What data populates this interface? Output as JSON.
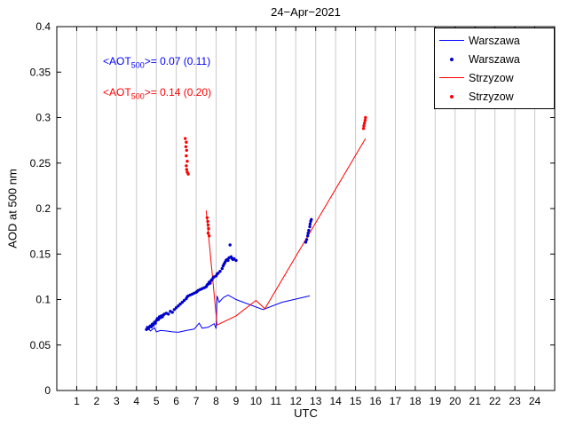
{
  "chart_data": {
    "type": "line",
    "title": "24−Apr−2021",
    "xlabel": "UTC",
    "ylabel": "AOD at 500 nm",
    "xlim": [
      0,
      25
    ],
    "ylim": [
      0,
      0.4
    ],
    "xticks": [
      1,
      2,
      3,
      4,
      5,
      6,
      7,
      8,
      9,
      10,
      11,
      12,
      13,
      14,
      15,
      16,
      17,
      18,
      19,
      20,
      21,
      22,
      23,
      24
    ],
    "xtick_labels": [
      "1",
      "2",
      "3",
      "4",
      "5",
      "6",
      "7",
      "8",
      "9",
      "10",
      "11",
      "12",
      "13",
      "14",
      "15",
      "16",
      "17",
      "18",
      "19",
      "20",
      "21",
      "22",
      "23",
      "24"
    ],
    "yticks": [
      0,
      0.05,
      0.1,
      0.15,
      0.2,
      0.25,
      0.3,
      0.35,
      0.4
    ],
    "ytick_labels": [
      "0",
      "0.05",
      "0.1",
      "0.15",
      "0.2",
      "0.25",
      "0.3",
      "0.35",
      "0.4"
    ],
    "grid": "vertical-only",
    "grid_color": "#c9c9c9",
    "legend": {
      "position": "top-right",
      "entries": [
        {
          "label": "Warszawa",
          "type": "line",
          "color": "#0000ff"
        },
        {
          "label": "Warszawa",
          "type": "scatter",
          "color": "#0000cc"
        },
        {
          "label": "Strzyzow",
          "type": "line",
          "color": "#ff0000"
        },
        {
          "label": "Strzyzow",
          "type": "scatter",
          "color": "#ff0000"
        }
      ]
    },
    "annotations": [
      {
        "pre": "<AOT",
        "sub": "500",
        "post": ">= 0.07 (0.11)",
        "color": "#0000ff"
      },
      {
        "pre": "<AOT",
        "sub": "500",
        "post": ">= 0.14 (0.20)",
        "color": "#ff0000"
      }
    ],
    "series": [
      {
        "name": "warszawa-line",
        "type": "line",
        "color": "#0000ff",
        "points": [
          [
            4.5,
            0.071
          ],
          [
            4.7,
            0.0655
          ],
          [
            4.9,
            0.069
          ],
          [
            5.0,
            0.0645
          ],
          [
            5.2,
            0.066
          ],
          [
            5.5,
            0.0655
          ],
          [
            5.8,
            0.0645
          ],
          [
            6.1,
            0.064
          ],
          [
            6.5,
            0.066
          ],
          [
            6.9,
            0.0675
          ],
          [
            7.15,
            0.074
          ],
          [
            7.3,
            0.0685
          ],
          [
            7.6,
            0.0695
          ],
          [
            7.9,
            0.0735
          ],
          [
            8.0,
            0.068
          ],
          [
            8.05,
            0.104
          ],
          [
            8.15,
            0.097
          ],
          [
            8.35,
            0.102
          ],
          [
            8.6,
            0.105
          ],
          [
            9.0,
            0.1
          ],
          [
            10.35,
            0.089
          ],
          [
            11.3,
            0.097
          ],
          [
            12.7,
            0.104
          ]
        ]
      },
      {
        "name": "warszawa-scatter",
        "type": "scatter",
        "color": "#0000cc",
        "points": [
          [
            4.5,
            0.067
          ],
          [
            4.55,
            0.069
          ],
          [
            4.6,
            0.068
          ],
          [
            4.65,
            0.07
          ],
          [
            4.7,
            0.071
          ],
          [
            4.75,
            0.07
          ],
          [
            4.8,
            0.073
          ],
          [
            4.85,
            0.072
          ],
          [
            4.9,
            0.075
          ],
          [
            4.95,
            0.074
          ],
          [
            5.0,
            0.077
          ],
          [
            5.05,
            0.079
          ],
          [
            5.1,
            0.078
          ],
          [
            5.15,
            0.081
          ],
          [
            5.2,
            0.08
          ],
          [
            5.25,
            0.082
          ],
          [
            5.3,
            0.081
          ],
          [
            5.35,
            0.083
          ],
          [
            5.4,
            0.084
          ],
          [
            5.5,
            0.085
          ],
          [
            5.6,
            0.084
          ],
          [
            5.7,
            0.087
          ],
          [
            5.8,
            0.086
          ],
          [
            5.9,
            0.089
          ],
          [
            6.0,
            0.091
          ],
          [
            6.1,
            0.093
          ],
          [
            6.2,
            0.095
          ],
          [
            6.3,
            0.097
          ],
          [
            6.4,
            0.099
          ],
          [
            6.5,
            0.101
          ],
          [
            6.55,
            0.103
          ],
          [
            6.6,
            0.104
          ],
          [
            6.7,
            0.105
          ],
          [
            6.8,
            0.106
          ],
          [
            6.9,
            0.107
          ],
          [
            7.0,
            0.108
          ],
          [
            7.05,
            0.109
          ],
          [
            7.1,
            0.11
          ],
          [
            7.2,
            0.111
          ],
          [
            7.3,
            0.112
          ],
          [
            7.4,
            0.113
          ],
          [
            7.5,
            0.114
          ],
          [
            7.55,
            0.116
          ],
          [
            7.6,
            0.117
          ],
          [
            7.65,
            0.119
          ],
          [
            7.7,
            0.118
          ],
          [
            7.75,
            0.121
          ],
          [
            7.8,
            0.122
          ],
          [
            7.85,
            0.124
          ],
          [
            7.9,
            0.125
          ],
          [
            8.0,
            0.126
          ],
          [
            8.05,
            0.128
          ],
          [
            8.1,
            0.129
          ],
          [
            8.2,
            0.131
          ],
          [
            8.3,
            0.134
          ],
          [
            8.35,
            0.137
          ],
          [
            8.4,
            0.139
          ],
          [
            8.45,
            0.141
          ],
          [
            8.5,
            0.143
          ],
          [
            8.55,
            0.144
          ],
          [
            8.6,
            0.143
          ],
          [
            8.65,
            0.146
          ],
          [
            8.7,
            0.16
          ],
          [
            8.75,
            0.147
          ],
          [
            8.8,
            0.145
          ],
          [
            8.85,
            0.144
          ],
          [
            8.9,
            0.145
          ],
          [
            9.0,
            0.143
          ],
          [
            12.5,
            0.163
          ],
          [
            12.55,
            0.166
          ],
          [
            12.6,
            0.17
          ],
          [
            12.62,
            0.173
          ],
          [
            12.65,
            0.176
          ],
          [
            12.7,
            0.18
          ],
          [
            12.72,
            0.183
          ],
          [
            12.75,
            0.186
          ],
          [
            12.78,
            0.188
          ]
        ]
      },
      {
        "name": "strzyzow-line",
        "type": "line",
        "color": "#ff0000",
        "points": [
          [
            7.5,
            0.198
          ],
          [
            8.05,
            0.072
          ],
          [
            9.0,
            0.082
          ],
          [
            10.0,
            0.099
          ],
          [
            10.45,
            0.09
          ],
          [
            15.5,
            0.277
          ]
        ]
      },
      {
        "name": "strzyzow-scatter",
        "type": "scatter",
        "color": "#ff0000",
        "points": [
          [
            6.45,
            0.277
          ],
          [
            6.5,
            0.273
          ],
          [
            6.48,
            0.268
          ],
          [
            6.52,
            0.264
          ],
          [
            6.5,
            0.258
          ],
          [
            6.55,
            0.252
          ],
          [
            6.5,
            0.247
          ],
          [
            6.52,
            0.243
          ],
          [
            6.55,
            0.24
          ],
          [
            6.6,
            0.238
          ],
          [
            7.55,
            0.19
          ],
          [
            7.58,
            0.186
          ],
          [
            7.6,
            0.182
          ],
          [
            7.62,
            0.178
          ],
          [
            7.6,
            0.173
          ],
          [
            7.65,
            0.17
          ],
          [
            15.4,
            0.288
          ],
          [
            15.42,
            0.291
          ],
          [
            15.45,
            0.294
          ],
          [
            15.48,
            0.297
          ],
          [
            15.5,
            0.3
          ]
        ]
      }
    ]
  }
}
